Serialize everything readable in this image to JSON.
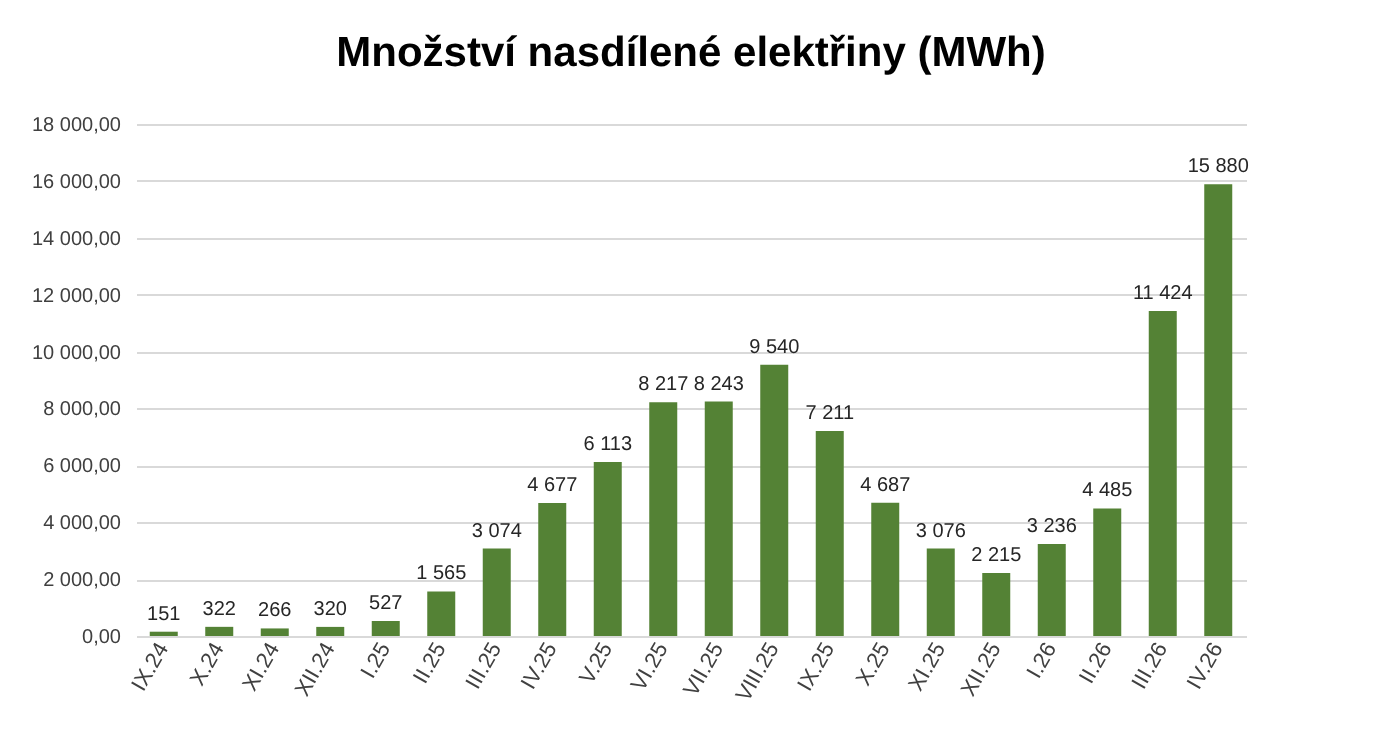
{
  "chart_data": {
    "type": "bar",
    "title": "Množství nasdílené elektřiny (MWh)",
    "categories": [
      "IX.24",
      "X.24",
      "XI.24",
      "XII.24",
      "I.25",
      "II.25",
      "III.25",
      "IV.25",
      "V.25",
      "VI.25",
      "VII.25",
      "VIII.25",
      "IX.25",
      "X.25",
      "XI.25",
      "XII.25",
      "I.26",
      "II.26",
      "III.26",
      "IV.26"
    ],
    "values": [
      151,
      322,
      266,
      320,
      527,
      1565,
      3074,
      4677,
      6113,
      8217,
      8243,
      9540,
      7211,
      4687,
      3076,
      2215,
      3236,
      4485,
      11424,
      15880
    ],
    "value_labels": [
      "151",
      "322",
      "266",
      "320",
      "527",
      "1 565",
      "3 074",
      "4 677",
      "6 113",
      "8 217",
      "8 243",
      "9 540",
      "7 211",
      "4 687",
      "3 076",
      "2 215",
      "3 236",
      "4 485",
      "11 424",
      "15 880"
    ],
    "color": "#548235",
    "ylim": [
      0,
      18000
    ],
    "yticks": [
      {
        "value": 0,
        "label": "0,00"
      },
      {
        "value": 2000,
        "label": "2 000,00"
      },
      {
        "value": 4000,
        "label": "4 000,00"
      },
      {
        "value": 6000,
        "label": "6 000,00"
      },
      {
        "value": 8000,
        "label": "8 000,00"
      },
      {
        "value": 10000,
        "label": "10 000,00"
      },
      {
        "value": 12000,
        "label": "12 000,00"
      },
      {
        "value": 14000,
        "label": "14 000,00"
      },
      {
        "value": 16000,
        "label": "16 000,00"
      },
      {
        "value": 18000,
        "label": "18 000,00"
      }
    ],
    "grid": true
  }
}
